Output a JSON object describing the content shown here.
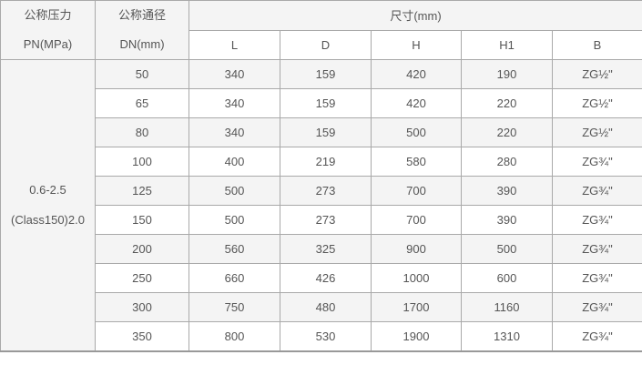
{
  "table": {
    "header": {
      "pressure_line1": "公称压力",
      "pressure_line2": "PN(MPa)",
      "diameter_line1": "公称通径",
      "diameter_line2": "DN(mm)",
      "size_group": "尺寸(mm)",
      "dim_columns": [
        "L",
        "D",
        "H",
        "H1",
        "B"
      ]
    },
    "pressure_value": {
      "line1": "0.6-2.5",
      "line2": "(Class150)2.0"
    },
    "rows": [
      {
        "dn": "50",
        "L": "340",
        "D": "159",
        "H": "420",
        "H1": "190",
        "B": "ZG½\""
      },
      {
        "dn": "65",
        "L": "340",
        "D": "159",
        "H": "420",
        "H1": "220",
        "B": "ZG½\""
      },
      {
        "dn": "80",
        "L": "340",
        "D": "159",
        "H": "500",
        "H1": "220",
        "B": "ZG½\""
      },
      {
        "dn": "100",
        "L": "400",
        "D": "219",
        "H": "580",
        "H1": "280",
        "B": "ZG¾\""
      },
      {
        "dn": "125",
        "L": "500",
        "D": "273",
        "H": "700",
        "H1": "390",
        "B": "ZG¾\""
      },
      {
        "dn": "150",
        "L": "500",
        "D": "273",
        "H": "700",
        "H1": "390",
        "B": "ZG¾\""
      },
      {
        "dn": "200",
        "L": "560",
        "D": "325",
        "H": "900",
        "H1": "500",
        "B": "ZG¾\""
      },
      {
        "dn": "250",
        "L": "660",
        "D": "426",
        "H": "1000",
        "H1": "600",
        "B": "ZG¾\""
      },
      {
        "dn": "300",
        "L": "750",
        "D": "480",
        "H": "1700",
        "H1": "1160",
        "B": "ZG¾\""
      },
      {
        "dn": "350",
        "L": "800",
        "D": "530",
        "H": "1900",
        "H1": "1310",
        "B": "ZG¾\""
      }
    ],
    "colors": {
      "border": "#a9a9a9",
      "stripe_bg": "#f4f4f4",
      "text": "#555555",
      "bottom_border": "#999999"
    }
  },
  "chart_data": {
    "type": "table",
    "title": "尺寸(mm)",
    "columns": [
      "公称压力 PN(MPa)",
      "公称通径 DN(mm)",
      "L",
      "D",
      "H",
      "H1",
      "B"
    ],
    "rows": [
      [
        "0.6-2.5 (Class150)2.0",
        "50",
        "340",
        "159",
        "420",
        "190",
        "ZG½\""
      ],
      [
        "0.6-2.5 (Class150)2.0",
        "65",
        "340",
        "159",
        "420",
        "220",
        "ZG½\""
      ],
      [
        "0.6-2.5 (Class150)2.0",
        "80",
        "340",
        "159",
        "500",
        "220",
        "ZG½\""
      ],
      [
        "0.6-2.5 (Class150)2.0",
        "100",
        "400",
        "219",
        "580",
        "280",
        "ZG¾\""
      ],
      [
        "0.6-2.5 (Class150)2.0",
        "125",
        "500",
        "273",
        "700",
        "390",
        "ZG¾\""
      ],
      [
        "0.6-2.5 (Class150)2.0",
        "150",
        "500",
        "273",
        "700",
        "390",
        "ZG¾\""
      ],
      [
        "0.6-2.5 (Class150)2.0",
        "200",
        "560",
        "325",
        "900",
        "500",
        "ZG¾\""
      ],
      [
        "0.6-2.5 (Class150)2.0",
        "250",
        "660",
        "426",
        "1000",
        "600",
        "ZG¾\""
      ],
      [
        "0.6-2.5 (Class150)2.0",
        "300",
        "750",
        "480",
        "1700",
        "1160",
        "ZG¾\""
      ],
      [
        "0.6-2.5 (Class150)2.0",
        "350",
        "800",
        "530",
        "1900",
        "1310",
        "ZG¾\""
      ]
    ]
  }
}
